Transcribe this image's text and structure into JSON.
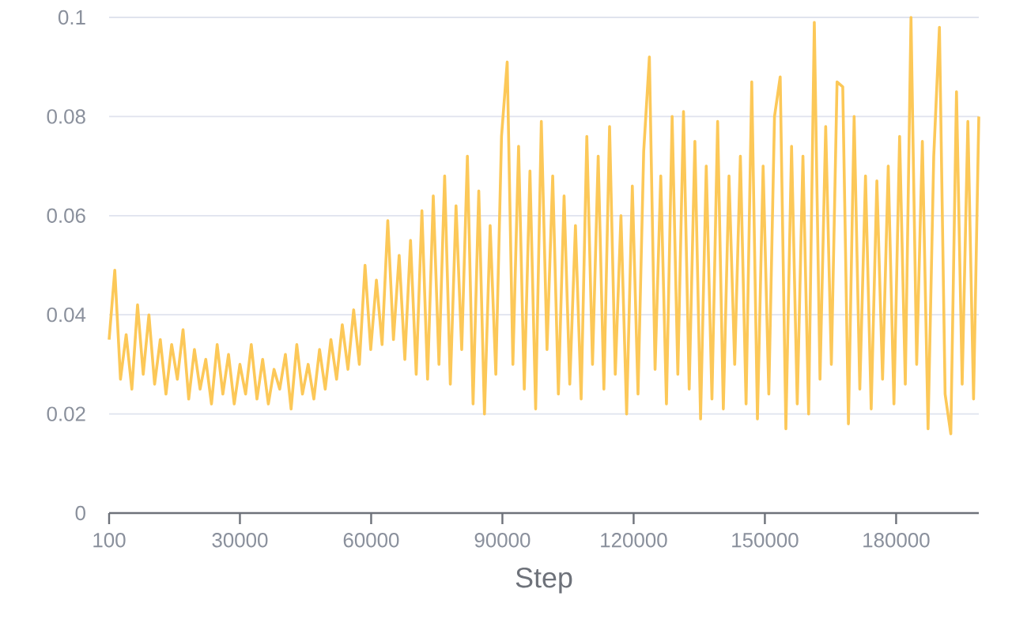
{
  "chart_data": {
    "type": "line",
    "xlabel": "Step",
    "color": "#fcc858",
    "grid": "y",
    "xlim": [
      100,
      198900
    ],
    "ylim": [
      0,
      0.1
    ],
    "xticks": [
      100,
      30000,
      60000,
      90000,
      120000,
      150000,
      180000
    ],
    "yticks": [
      0,
      0.02,
      0.04,
      0.06,
      0.08,
      0.1
    ],
    "x": [
      100,
      1400,
      2700,
      4000,
      5300,
      6600,
      7900,
      9200,
      10500,
      11800,
      13100,
      14400,
      15700,
      17000,
      18300,
      19600,
      20900,
      22200,
      23500,
      24800,
      26100,
      27400,
      28700,
      30000,
      31300,
      32600,
      33900,
      35200,
      36500,
      37800,
      39100,
      40400,
      41700,
      43000,
      44300,
      45600,
      46900,
      48200,
      49500,
      50800,
      52100,
      53400,
      54700,
      56000,
      57300,
      58600,
      59900,
      61200,
      62500,
      63800,
      65100,
      66400,
      67700,
      69000,
      70300,
      71600,
      72900,
      74200,
      75500,
      76800,
      78100,
      79400,
      80700,
      82000,
      83300,
      84600,
      85900,
      87200,
      88500,
      89800,
      91100,
      92400,
      93700,
      95000,
      96300,
      97600,
      98900,
      100200,
      101500,
      102800,
      104100,
      105400,
      106700,
      108000,
      109300,
      110600,
      111900,
      113200,
      114500,
      115800,
      117100,
      118400,
      119700,
      121000,
      122300,
      123600,
      124900,
      126200,
      127500,
      128800,
      130100,
      131400,
      132700,
      134000,
      135300,
      136600,
      137900,
      139200,
      140500,
      141800,
      143100,
      144400,
      145700,
      147000,
      148300,
      149600,
      150900,
      152200,
      153500,
      154800,
      156100,
      157400,
      158700,
      160000,
      161300,
      162600,
      163900,
      165200,
      166500,
      167800,
      169100,
      170400,
      171700,
      173000,
      174300,
      175600,
      176900,
      178200,
      179500,
      180800,
      182100,
      183400,
      184700,
      186000,
      187300,
      188600,
      189900,
      191200,
      192500,
      193800,
      195100,
      196400,
      197700,
      198900
    ],
    "values": [
      0.035,
      0.049,
      0.027,
      0.036,
      0.025,
      0.042,
      0.028,
      0.04,
      0.026,
      0.035,
      0.024,
      0.034,
      0.027,
      0.037,
      0.023,
      0.033,
      0.025,
      0.031,
      0.022,
      0.034,
      0.024,
      0.032,
      0.022,
      0.03,
      0.024,
      0.034,
      0.023,
      0.031,
      0.022,
      0.029,
      0.025,
      0.032,
      0.021,
      0.034,
      0.024,
      0.03,
      0.023,
      0.033,
      0.025,
      0.035,
      0.027,
      0.038,
      0.029,
      0.041,
      0.03,
      0.05,
      0.033,
      0.047,
      0.034,
      0.059,
      0.035,
      0.052,
      0.031,
      0.055,
      0.028,
      0.061,
      0.027,
      0.064,
      0.03,
      0.068,
      0.026,
      0.062,
      0.033,
      0.072,
      0.022,
      0.065,
      0.02,
      0.058,
      0.028,
      0.076,
      0.091,
      0.03,
      0.074,
      0.025,
      0.069,
      0.021,
      0.079,
      0.033,
      0.068,
      0.024,
      0.064,
      0.026,
      0.058,
      0.023,
      0.076,
      0.03,
      0.072,
      0.025,
      0.078,
      0.028,
      0.06,
      0.02,
      0.066,
      0.024,
      0.073,
      0.092,
      0.029,
      0.068,
      0.022,
      0.08,
      0.028,
      0.081,
      0.025,
      0.075,
      0.019,
      0.07,
      0.023,
      0.079,
      0.021,
      0.068,
      0.03,
      0.072,
      0.022,
      0.087,
      0.019,
      0.07,
      0.024,
      0.08,
      0.088,
      0.017,
      0.074,
      0.022,
      0.072,
      0.02,
      0.099,
      0.027,
      0.078,
      0.03,
      0.087,
      0.086,
      0.018,
      0.08,
      0.025,
      0.068,
      0.021,
      0.067,
      0.027,
      0.07,
      0.022,
      0.076,
      0.026,
      0.1,
      0.03,
      0.075,
      0.017,
      0.072,
      0.098,
      0.024,
      0.016,
      0.085,
      0.026,
      0.079,
      0.023,
      0.08
    ]
  }
}
